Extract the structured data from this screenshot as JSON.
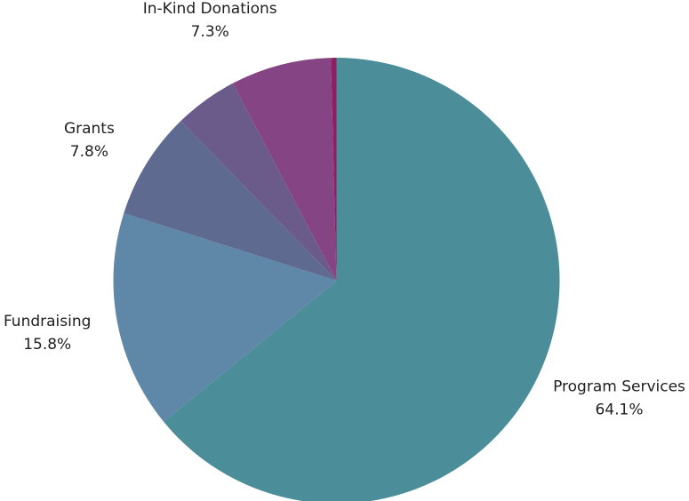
{
  "chart_data": {
    "type": "pie",
    "title": "",
    "start_angle_deg": 0,
    "direction": "clockwise",
    "legend": "none",
    "slices": [
      {
        "name": "Program Services",
        "value": 64.1,
        "label": "64.1%",
        "show_label": true,
        "color": "#4c8d9a"
      },
      {
        "name": "Fundraising",
        "value": 15.8,
        "label": "15.8%",
        "show_label": true,
        "color": "#5f87a7"
      },
      {
        "name": "Grants",
        "value": 7.8,
        "label": "7.8%",
        "show_label": true,
        "color": "#5e6a8f"
      },
      {
        "name": "",
        "value": 4.6,
        "label": "",
        "show_label": false,
        "color": "#6a5b8a"
      },
      {
        "name": "In-Kind Donations",
        "value": 7.3,
        "label": "7.3%",
        "show_label": true,
        "color": "#854484"
      },
      {
        "name": "",
        "value": 0.4,
        "label": "",
        "show_label": false,
        "color": "#8e2060"
      }
    ]
  }
}
